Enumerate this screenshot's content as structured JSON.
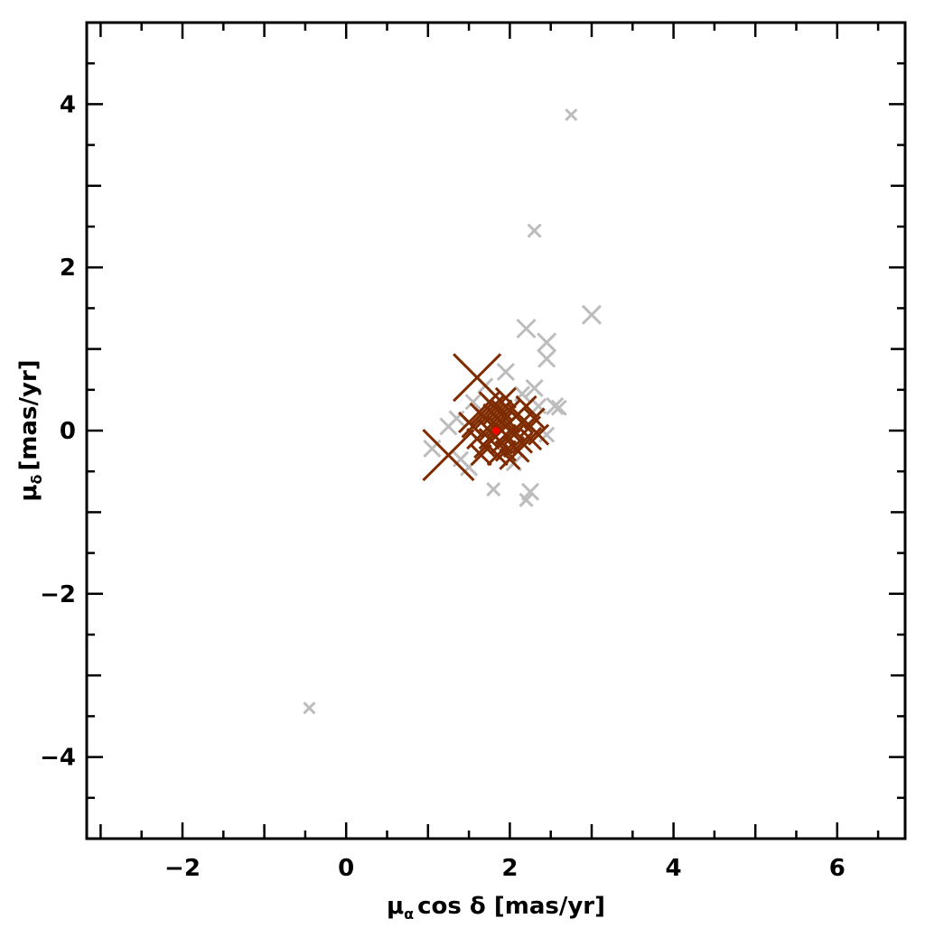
{
  "chart_data": {
    "type": "scatter",
    "xlabel": {
      "symbol": "μ",
      "subscript": "α",
      "rest": "cos δ [mas/yr]"
    },
    "ylabel": {
      "symbol": "μ",
      "subscript": "δ",
      "rest": "[mas/yr]"
    },
    "xlim": [
      -3.17,
      6.83
    ],
    "ylim": [
      -5,
      5
    ],
    "xticks": [
      {
        "value": -2,
        "label": "−2"
      },
      0,
      2,
      4,
      6
    ],
    "yticks": [
      {
        "value": -4,
        "label": "−4"
      },
      {
        "value": -2,
        "label": "−2"
      },
      0,
      2,
      4
    ],
    "xminor_ticks": [
      -3,
      -2.5,
      -1.5,
      -1,
      -0.5,
      0.5,
      1,
      1.5,
      2.5,
      3,
      3.5,
      4.5,
      5,
      5.5,
      6.5
    ],
    "yminor_ticks": [
      -4.5,
      -3.5,
      -3,
      -2.5,
      -1.5,
      -1,
      -0.5,
      0.5,
      1,
      1.5,
      2.5,
      3,
      3.5,
      4.5
    ],
    "series": [
      {
        "color": "#bdbdbd",
        "marker": "x",
        "x": [
          2.75,
          2.3,
          3.0,
          2.2,
          2.45,
          2.45,
          1.95,
          2.3,
          2.55,
          2.35,
          1.05,
          1.25,
          1.5,
          1.8,
          2.25,
          2.2,
          2.45,
          -0.45,
          1.35,
          1.7,
          2.15,
          1.55,
          2.6,
          1.4,
          2.05
        ],
        "y": [
          3.87,
          2.45,
          1.42,
          1.25,
          1.08,
          0.88,
          0.72,
          0.52,
          0.3,
          0.3,
          -0.22,
          0.05,
          -0.45,
          -0.72,
          -0.75,
          -0.85,
          -0.05,
          -3.4,
          0.15,
          0.55,
          0.45,
          0.35,
          0.28,
          -0.35,
          -0.4
        ],
        "sizes": [
          6,
          7,
          10,
          10,
          10,
          9,
          9,
          9,
          9,
          8,
          9,
          9,
          9,
          7,
          9,
          7,
          8,
          6,
          8,
          8,
          8,
          8,
          8,
          8,
          8
        ]
      },
      {
        "color": "#7f2b00",
        "marker": "x",
        "x": [
          1.6,
          1.25,
          1.95,
          1.85,
          2.05,
          1.75,
          2.15,
          1.9,
          1.65,
          2.25,
          1.8,
          2.0,
          1.7,
          2.1,
          1.55,
          2.3,
          1.95,
          1.85,
          2.2,
          1.6,
          2.05,
          1.75,
          1.9,
          2.35,
          1.5,
          2.0,
          1.8,
          2.15,
          1.7,
          1.95,
          2.1,
          1.85,
          1.65,
          2.25,
          2.0,
          1.75,
          1.9,
          2.05,
          1.8,
          1.95
        ],
        "y": [
          0.65,
          -0.3,
          0.05,
          0.15,
          -0.05,
          0.0,
          0.1,
          -0.15,
          0.2,
          -0.1,
          0.3,
          0.25,
          -0.2,
          -0.25,
          0.05,
          0.15,
          0.4,
          -0.3,
          0.3,
          -0.1,
          0.0,
          0.35,
          0.1,
          -0.05,
          0.1,
          -0.35,
          -0.05,
          -0.15,
          0.15,
          -0.25,
          0.2,
          0.05,
          -0.3,
          0.05,
          0.1,
          -0.1,
          0.25,
          -0.2,
          0.2,
          -0.05
        ],
        "sizes": [
          26,
          28,
          12,
          12,
          12,
          12,
          12,
          12,
          12,
          12,
          12,
          12,
          12,
          12,
          12,
          11,
          11,
          11,
          11,
          11,
          11,
          11,
          11,
          11,
          11,
          11,
          11,
          11,
          11,
          11,
          11,
          11,
          11,
          11,
          11,
          11,
          11,
          11,
          11,
          11
        ]
      },
      {
        "color": "#ff0000",
        "marker": "dot",
        "x": [
          1.83
        ],
        "y": [
          0.0
        ],
        "sizes": [
          4
        ]
      }
    ]
  }
}
